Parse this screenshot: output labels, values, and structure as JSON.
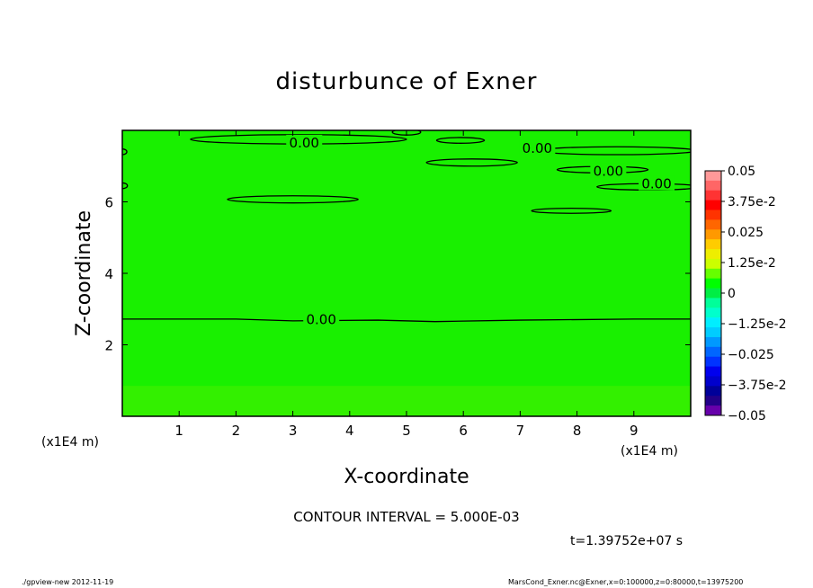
{
  "chart_data": {
    "type": "contour",
    "title": "disturbunce of Exner",
    "xlabel": "X-coordinate",
    "ylabel": "Z-coordinate",
    "x_unit": "(x1E4 m)",
    "z_unit": "(x1E4 m)",
    "xlim": [
      0,
      10
    ],
    "ylim": [
      0,
      8
    ],
    "x_ticks": [
      1,
      2,
      3,
      4,
      5,
      6,
      7,
      8,
      9
    ],
    "y_ticks": [
      2,
      4,
      6
    ],
    "field_fill_color": "#19f000",
    "lower_fill_color": "#33f000",
    "contour_labels": [
      {
        "text": "0.00",
        "x": 3.2,
        "z": 7.65
      },
      {
        "text": "0.00",
        "x": 7.3,
        "z": 7.5
      },
      {
        "text": "0.00",
        "x": 8.55,
        "z": 6.85
      },
      {
        "text": "0.00",
        "x": 9.4,
        "z": 6.5
      },
      {
        "text": "0.00",
        "x": 3.5,
        "z": 2.7
      }
    ],
    "contours": [
      {
        "type": "line",
        "points": [
          [
            0,
            2.72
          ],
          [
            2,
            2.72
          ],
          [
            3,
            2.67
          ],
          [
            4.5,
            2.69
          ],
          [
            5.5,
            2.65
          ],
          [
            7,
            2.69
          ],
          [
            9,
            2.72
          ],
          [
            10,
            2.72
          ]
        ]
      },
      {
        "type": "ellipse",
        "cx": 3.1,
        "cz": 7.75,
        "rx": 1.9,
        "rz": 0.13
      },
      {
        "type": "ellipse",
        "cx": 5.0,
        "cz": 7.95,
        "rx": 0.25,
        "rz": 0.08
      },
      {
        "type": "ellipse",
        "cx": 5.95,
        "cz": 7.72,
        "rx": 0.42,
        "rz": 0.08
      },
      {
        "type": "ellipse",
        "cx": 6.15,
        "cz": 7.1,
        "rx": 0.8,
        "rz": 0.1
      },
      {
        "type": "ellipse",
        "cx": 8.7,
        "cz": 7.43,
        "rx": 1.4,
        "rz": 0.11
      },
      {
        "type": "ellipse",
        "cx": 8.45,
        "cz": 6.9,
        "rx": 0.8,
        "rz": 0.09
      },
      {
        "type": "ellipse",
        "cx": 9.25,
        "cz": 6.42,
        "rx": 0.9,
        "rz": 0.09
      },
      {
        "type": "ellipse",
        "cx": 3.0,
        "cz": 6.07,
        "rx": 1.15,
        "rz": 0.1
      },
      {
        "type": "ellipse",
        "cx": 7.9,
        "cz": 5.75,
        "rx": 0.7,
        "rz": 0.07
      },
      {
        "type": "ellipse",
        "cx": 0.0,
        "cz": 7.4,
        "rx": 0.08,
        "rz": 0.08
      },
      {
        "type": "ellipse",
        "cx": 0.0,
        "cz": 6.45,
        "rx": 0.09,
        "rz": 0.08
      }
    ],
    "colorbar": {
      "labels": [
        "0.05",
        "3.75e-2",
        "0.025",
        "1.25e-2",
        "0",
        "−1.25e-2",
        "−0.025",
        "−3.75e-2",
        "−0.05"
      ],
      "colors_top_to_bottom": [
        "#ff9999",
        "#ff6666",
        "#ff3333",
        "#ff0000",
        "#ff3300",
        "#ff6600",
        "#ff9900",
        "#ffcc00",
        "#eeee00",
        "#ccff00",
        "#66ff00",
        "#00ff00",
        "#00ee44",
        "#00ff99",
        "#00ffcc",
        "#00eeff",
        "#00ccff",
        "#0099ff",
        "#0066ff",
        "#0033ff",
        "#0000ee",
        "#0000cc",
        "#000099",
        "#220088",
        "#6600aa"
      ]
    }
  },
  "page": {
    "title": "disturbunce of Exner",
    "contour_interval": "CONTOUR INTERVAL = 5.000E-03",
    "timestamp": "t=1.39752e+07 s",
    "footer_left": "./gpview-new  2012-11-19",
    "footer_right": "MarsCond_Exner.nc@Exner,x=0:100000,z=0:80000,t=13975200"
  }
}
